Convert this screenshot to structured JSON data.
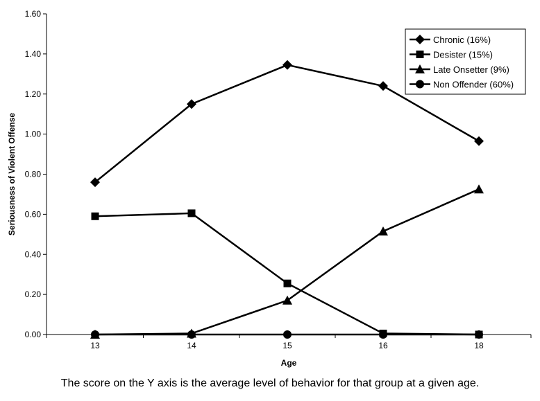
{
  "chart_data": {
    "type": "line",
    "xlabel": "Age",
    "ylabel": "Seriousness of Violent Offense",
    "categories": [
      "13",
      "14",
      "15",
      "16",
      "18"
    ],
    "ylim": [
      0,
      1.6
    ],
    "yticks": [
      "0.00",
      "0.20",
      "0.40",
      "0.60",
      "0.80",
      "1.00",
      "1.20",
      "1.40",
      "1.60"
    ],
    "grid": false,
    "legend_position": "top-right",
    "series": [
      {
        "name": "Chronic (16%)",
        "marker": "diamond",
        "values": [
          0.76,
          1.15,
          1.345,
          1.24,
          0.965
        ]
      },
      {
        "name": "Desister (15%)",
        "marker": "square",
        "values": [
          0.59,
          0.605,
          0.255,
          0.005,
          0.0
        ]
      },
      {
        "name": "Late Onsetter (9%)",
        "marker": "triangle",
        "values": [
          0.0,
          0.005,
          0.17,
          0.515,
          0.725
        ]
      },
      {
        "name": "Non Offender (60%)",
        "marker": "circle",
        "values": [
          0.0,
          0.0,
          0.0,
          0.0,
          0.0
        ]
      }
    ],
    "line_color": "#000000"
  },
  "caption": "The score on the Y axis is the average level of behavior for that group at a given age."
}
